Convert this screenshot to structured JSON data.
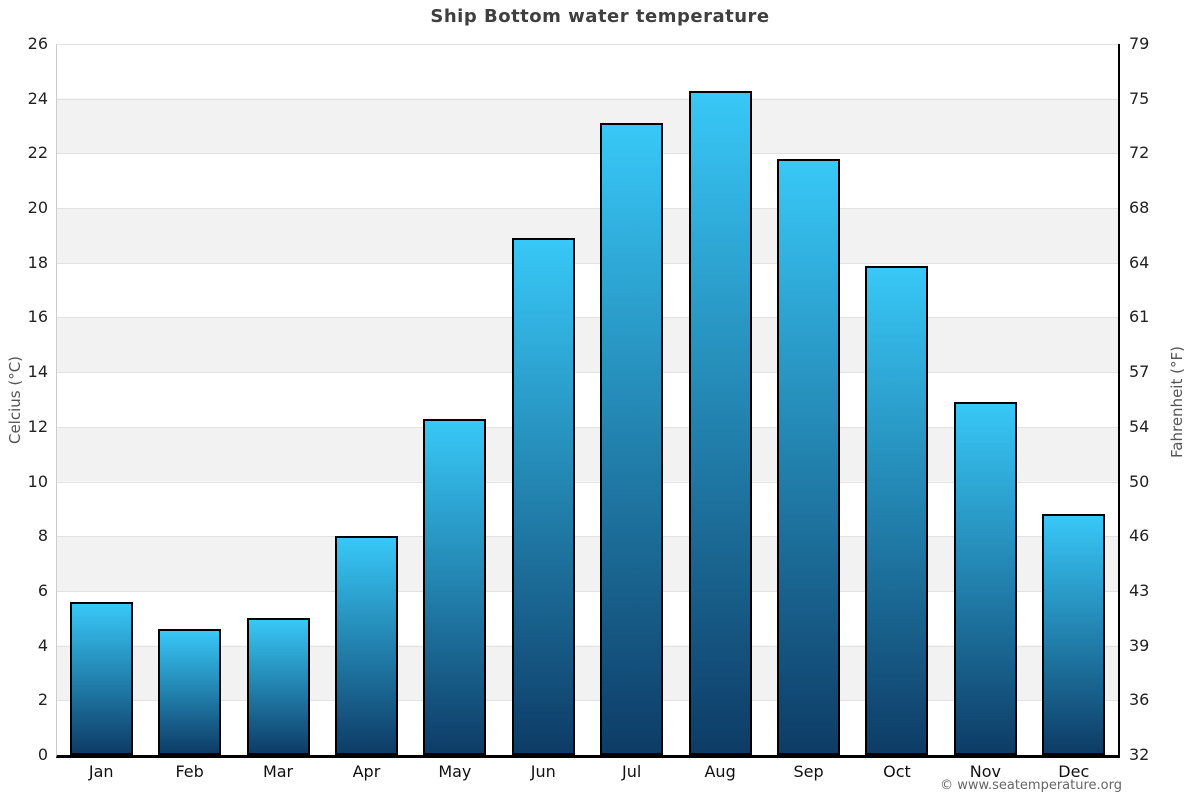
{
  "title": "Ship Bottom water temperature",
  "footer_credit": "© www.seatemperature.org",
  "axes": {
    "left": {
      "label": "Celcius (°C)",
      "ticks": [
        0,
        2,
        4,
        6,
        8,
        10,
        12,
        14,
        16,
        18,
        20,
        22,
        24,
        26
      ]
    },
    "right": {
      "label": "Fahrenheit (°F)",
      "ticks": [
        32,
        36,
        39,
        43,
        46,
        50,
        54,
        57,
        61,
        64,
        68,
        72,
        75,
        79
      ]
    }
  },
  "months": [
    "Jan",
    "Feb",
    "Mar",
    "Apr",
    "May",
    "Jun",
    "Jul",
    "Aug",
    "Sep",
    "Oct",
    "Nov",
    "Dec"
  ],
  "values_c": [
    5.6,
    4.6,
    5.0,
    8.0,
    12.3,
    18.9,
    23.1,
    24.3,
    21.8,
    17.9,
    12.9,
    8.8
  ],
  "colors": {
    "bar_gradient_top": "#38c8f7",
    "bar_gradient_bottom": "#0d3c66",
    "bar_border": "#000000",
    "band_gray": "#f2f2f3",
    "band_white": "#ffffff",
    "gridline": "#e2e2e2",
    "left_axis_line": "#cccccc",
    "right_axis_line": "#000000",
    "bottom_axis_line": "#000000",
    "title_color": "#3f3f3f",
    "tick_label_color": "#222222",
    "month_label_color": "#111111",
    "axis_title_color": "#555555",
    "footer_color": "#666666"
  },
  "chart_data": {
    "type": "bar",
    "title": "Ship Bottom water temperature",
    "categories": [
      "Jan",
      "Feb",
      "Mar",
      "Apr",
      "May",
      "Jun",
      "Jul",
      "Aug",
      "Sep",
      "Oct",
      "Nov",
      "Dec"
    ],
    "values": [
      5.6,
      4.6,
      5.0,
      8.0,
      12.3,
      18.9,
      23.1,
      24.3,
      21.8,
      17.9,
      12.9,
      8.8
    ],
    "xlabel": "",
    "ylabel": "Celcius (°C)",
    "ylabel_right": "Fahrenheit (°F)",
    "ylim": [
      0,
      26
    ],
    "y_ticks": [
      0,
      2,
      4,
      6,
      8,
      10,
      12,
      14,
      16,
      18,
      20,
      22,
      24,
      26
    ],
    "y_ticks_right_labels": [
      32,
      36,
      39,
      43,
      46,
      50,
      54,
      57,
      61,
      64,
      68,
      72,
      75,
      79
    ],
    "grid": true,
    "legend": false,
    "plot_bands_alternating": true,
    "bar_fill": "vertical gradient #38c8f7 (top) to #0d3c66 (bottom), 2px black border"
  }
}
